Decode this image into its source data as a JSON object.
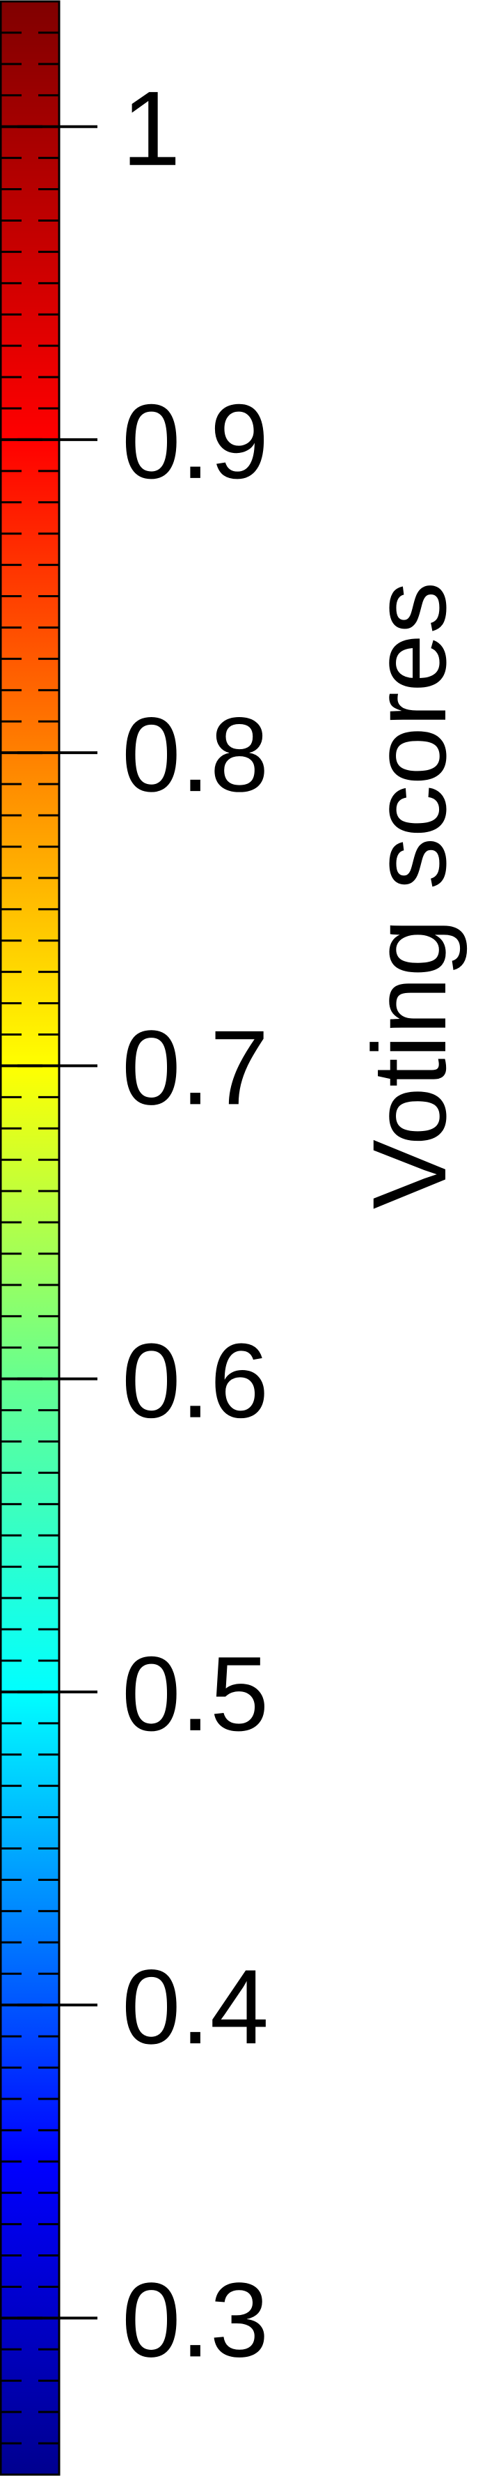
{
  "chart_data": {
    "type": "colorbar",
    "colormap": "jet",
    "orientation": "vertical",
    "ylabel": "Voting scores",
    "ylim": [
      0.25,
      1.04
    ],
    "major_ticks": [
      0.3,
      0.4,
      0.5,
      0.6,
      0.7,
      0.8,
      0.9,
      1.0
    ],
    "tick_labels": [
      "0.3",
      "0.4",
      "0.5",
      "0.6",
      "0.7",
      "0.8",
      "0.9",
      "1"
    ],
    "minor_tick_step": 0.01,
    "gradient_stops": [
      {
        "value": 0.25,
        "color": "#00008f"
      },
      {
        "value": 0.35,
        "color": "#0000ff"
      },
      {
        "value": 0.5,
        "color": "#00ffff"
      },
      {
        "value": 0.6,
        "color": "#66ff90"
      },
      {
        "value": 0.7,
        "color": "#ffff00"
      },
      {
        "value": 0.8,
        "color": "#ff8000"
      },
      {
        "value": 0.9,
        "color": "#ff0000"
      },
      {
        "value": 1.04,
        "color": "#800000"
      }
    ]
  }
}
